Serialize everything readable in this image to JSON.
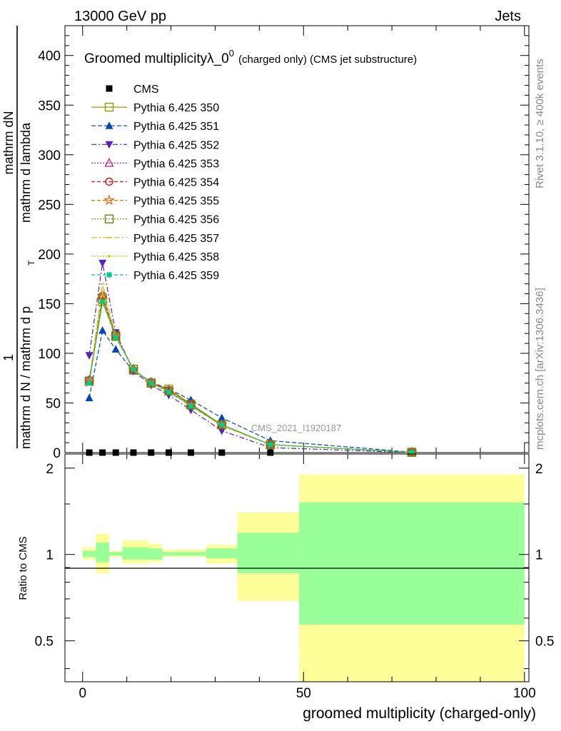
{
  "header": {
    "energy": "13000 GeV pp",
    "process": "Jets"
  },
  "side_labels": {
    "rivet": "Rivet 3.1.10, ≥ 400k events",
    "mcplots": "mcplots.cern.ch [arXiv:1306.3436]"
  },
  "watermark": "CMS_2021_I1920187",
  "colors": {
    "band_yellow": "#ffff99",
    "band_green": "#99ff99",
    "data_marker": "#000000"
  },
  "chart_data": [
    {
      "type": "line",
      "panel": "main",
      "title": "Groomed multiplicityλ_0",
      "title_sup": "0",
      "title_suffix": "(charged only) (CMS jet substructure)",
      "ylabel": {
        "numerator": "mathrm dN",
        "numerator_front": "1",
        "denominator_a": "mathrm d p",
        "denominator_a_sub": "T",
        "denominator_b": "mathrm d lambda",
        "denominator_front": "mathrm d N / mathrm d p",
        "denominator_front_sub": "T"
      },
      "xlim": [
        -4,
        101
      ],
      "ylim": [
        0,
        430
      ],
      "yticks": [
        "0",
        "50",
        "100",
        "150",
        "200",
        "250",
        "300",
        "350",
        "400"
      ],
      "grid": false,
      "legend_position": "top-left",
      "x": [
        1.5,
        4.5,
        7.5,
        11.5,
        15.5,
        19.5,
        24.5,
        31.5,
        42.5,
        74.5
      ],
      "cms_data": {
        "name": "CMS",
        "x": [
          1.5,
          4.5,
          7.5,
          11.5,
          15.5,
          19.5,
          24.5,
          31.5,
          42.5
        ],
        "values": [
          0,
          0,
          0,
          0,
          0,
          0,
          0,
          0,
          0
        ]
      },
      "series": [
        {
          "name": "Pythia 6.425 350",
          "color": "#999900",
          "dash": "",
          "marker": "square-open",
          "values": [
            72,
            152,
            118,
            84,
            70,
            64,
            49,
            28,
            8,
            0.3
          ]
        },
        {
          "name": "Pythia 6.425 351",
          "color": "#0044bb",
          "dash": "6,3",
          "marker": "triangle-up",
          "values": [
            55,
            123,
            104,
            82,
            71,
            64,
            53,
            35,
            12,
            0.5
          ]
        },
        {
          "name": "Pythia 6.425 352",
          "color": "#5522bb",
          "dash": "7,3,2,3",
          "marker": "triangle-down",
          "values": [
            98,
            191,
            121,
            82,
            68,
            58,
            43,
            22,
            5,
            0.1
          ]
        },
        {
          "name": "Pythia 6.425 353",
          "color": "#bb2288",
          "dash": "2,2",
          "marker": "triangle-open",
          "values": [
            73,
            158,
            118,
            83,
            71,
            63,
            48,
            28,
            8,
            0.3
          ]
        },
        {
          "name": "Pythia 6.425 354",
          "color": "#dd1111",
          "dash": "5,3",
          "marker": "circle-open",
          "values": [
            73,
            158,
            118,
            83,
            71,
            63,
            48,
            28,
            8,
            0.3
          ]
        },
        {
          "name": "Pythia 6.425 355",
          "color": "#ee6600",
          "dash": "5,3",
          "marker": "star-open",
          "values": [
            71,
            154,
            117,
            84,
            70,
            63,
            48,
            28,
            8,
            0.3
          ]
        },
        {
          "name": "Pythia 6.425 356",
          "color": "#668800",
          "dash": "2,2",
          "marker": "square-open",
          "values": [
            72,
            155,
            117,
            84,
            70,
            62,
            48,
            28,
            8,
            0.3
          ]
        },
        {
          "name": "Pythia 6.425 357",
          "color": "#ccbb00",
          "dash": "8,3,2,3",
          "marker": "tick",
          "values": [
            70,
            170,
            118,
            83,
            70,
            61,
            47,
            27,
            8,
            0.3
          ]
        },
        {
          "name": "Pythia 6.425 358",
          "color": "#bbcc00",
          "dash": "2,2",
          "marker": "dot",
          "values": [
            70,
            162,
            117,
            83,
            70,
            61,
            47,
            27,
            8,
            0.3
          ]
        },
        {
          "name": "Pythia 6.425 359",
          "color": "#00cc88",
          "dash": "5,3",
          "marker": "square-filled",
          "values": [
            70,
            152,
            116,
            84,
            70,
            61,
            47,
            28,
            8,
            0.3
          ]
        }
      ]
    },
    {
      "type": "area",
      "panel": "ratio",
      "ylabel": "Ratio to CMS",
      "xlabel": "groomed multiplicity (charged-only)",
      "xlim": [
        -4,
        101
      ],
      "ylim": [
        0.36,
        2.24
      ],
      "xticks": [
        "0",
        "50",
        "100"
      ],
      "yticks": [
        "0.5",
        "1",
        "2"
      ],
      "reference": 1,
      "bins": [
        {
          "lo": 0,
          "hi": 3,
          "green": [
            0.98,
            1.03
          ],
          "yellow": [
            0.96,
            1.06
          ]
        },
        {
          "lo": 3,
          "hi": 6,
          "green": [
            0.94,
            1.1
          ],
          "yellow": [
            0.86,
            1.18
          ]
        },
        {
          "lo": 6,
          "hi": 9,
          "green": [
            0.99,
            1.02
          ],
          "yellow": [
            0.98,
            1.03
          ]
        },
        {
          "lo": 9,
          "hi": 15,
          "green": [
            0.96,
            1.06
          ],
          "yellow": [
            0.93,
            1.12
          ]
        },
        {
          "lo": 15,
          "hi": 18,
          "green": [
            0.96,
            1.05
          ],
          "yellow": [
            0.94,
            1.09
          ]
        },
        {
          "lo": 18,
          "hi": 28,
          "green": [
            0.99,
            1.02
          ],
          "yellow": [
            0.98,
            1.04
          ]
        },
        {
          "lo": 28,
          "hi": 35,
          "green": [
            0.97,
            1.05
          ],
          "yellow": [
            0.93,
            1.08
          ]
        },
        {
          "lo": 35,
          "hi": 49,
          "green": [
            0.86,
            1.19
          ],
          "yellow": [
            0.69,
            1.4
          ]
        },
        {
          "lo": 49,
          "hi": 100,
          "green": [
            0.57,
            1.52
          ],
          "yellow": [
            0.36,
            1.9
          ]
        }
      ]
    }
  ]
}
